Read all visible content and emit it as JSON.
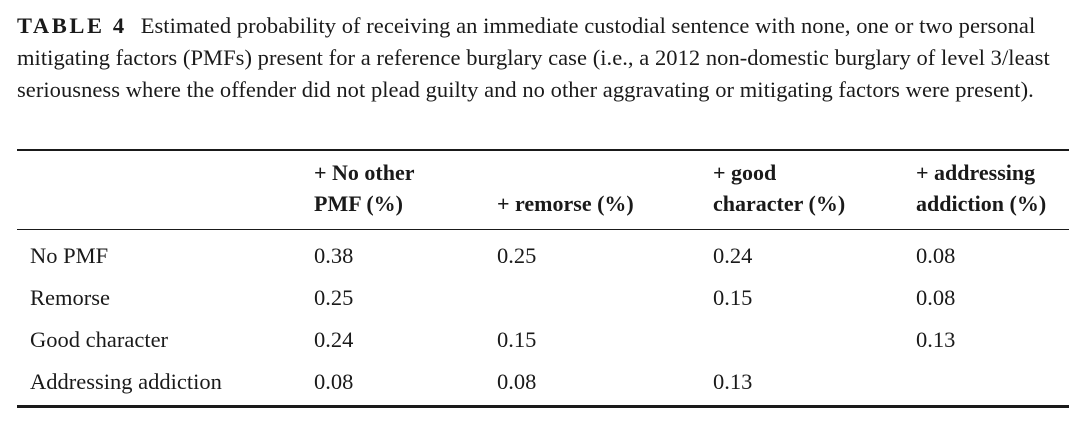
{
  "caption": {
    "label": "TABLE 4",
    "text": "Estimated probability of receiving an immediate custodial sentence with none, one or two personal mitigating factors (PMFs) present for a reference burglary case (i.e., a 2012 non-domestic burglary of level 3/least seriousness where the offender did not plead guilty and no other aggravating or mitigating factors were present)."
  },
  "table": {
    "headers": [
      {
        "line1": "",
        "line2": ""
      },
      {
        "line1": "+ No other",
        "line2": "PMF (%)"
      },
      {
        "line1": "",
        "line2": "+ remorse (%)"
      },
      {
        "line1": "+ good",
        "line2": "character (%)"
      },
      {
        "line1": "+ addressing",
        "line2": "addiction (%)"
      }
    ],
    "rows": [
      [
        "No PMF",
        "0.38",
        "0.25",
        "0.24",
        "0.08"
      ],
      [
        "Remorse",
        "0.25",
        "",
        "0.15",
        "0.08"
      ],
      [
        "Good character",
        "0.24",
        "0.15",
        "",
        "0.13"
      ],
      [
        "Addressing addiction",
        "0.08",
        "0.08",
        "0.13",
        ""
      ]
    ]
  }
}
